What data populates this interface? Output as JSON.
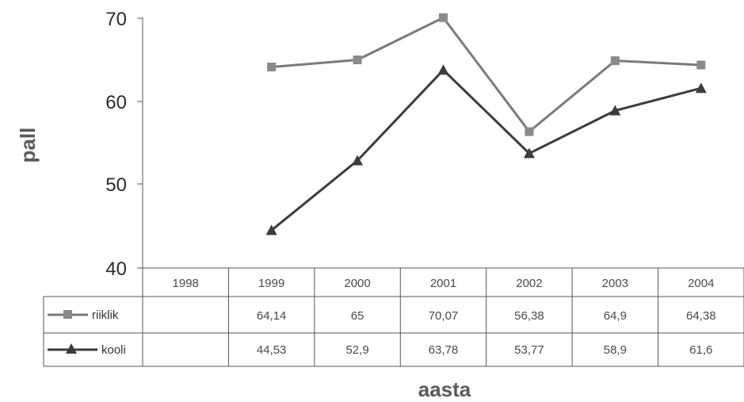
{
  "chart_data": {
    "type": "line",
    "xlabel": "aasta",
    "ylabel": "pall",
    "ylim": [
      40,
      70
    ],
    "yticks": [
      "40",
      "50",
      "60",
      "70"
    ],
    "categories": [
      "1998",
      "1999",
      "2000",
      "2001",
      "2002",
      "2003",
      "2004"
    ],
    "series": [
      {
        "name": "riiklik",
        "marker": "square",
        "color": "#7a7a7a",
        "values": [
          null,
          64.14,
          65,
          70.07,
          56.38,
          64.9,
          64.38
        ],
        "labels": [
          "",
          "64,14",
          "65",
          "70,07",
          "56,38",
          "64,9",
          "64,38"
        ]
      },
      {
        "name": "kooli",
        "marker": "triangle",
        "color": "#3c3c3c",
        "values": [
          null,
          44.53,
          52.9,
          63.78,
          53.77,
          58.9,
          61.6
        ],
        "labels": [
          "",
          "44,53",
          "52,9",
          "63,78",
          "53,77",
          "58,9",
          "61,6"
        ]
      }
    ],
    "grid": false,
    "data_table": true,
    "legend": "in data table"
  }
}
